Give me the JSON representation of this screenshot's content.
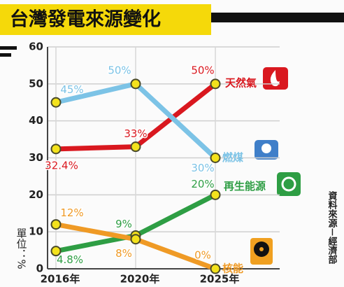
{
  "chart_data": {
    "type": "line",
    "title": "台灣發電來源變化",
    "ylabel": "單位：%",
    "source": "資料來源－經濟部",
    "categories": [
      "2016年",
      "2020年",
      "2025年"
    ],
    "ylim": [
      0,
      60
    ],
    "yticks": [
      0,
      10,
      20,
      30,
      40,
      50,
      60
    ],
    "grid": true,
    "series": [
      {
        "name": "天然氣",
        "color": "#d9181f",
        "values": [
          32.4,
          33,
          50
        ],
        "value_labels": [
          "32.4%",
          "33%",
          "50%"
        ]
      },
      {
        "name": "燃煤",
        "color": "#7cc3e6",
        "values": [
          45,
          50,
          30
        ],
        "value_labels": [
          "45%",
          "50%",
          "30%"
        ]
      },
      {
        "name": "再生能源",
        "color": "#2e9e44",
        "values": [
          4.8,
          9,
          20
        ],
        "value_labels": [
          "4.8%",
          "9%",
          "20%"
        ]
      },
      {
        "name": "核能",
        "color": "#ef9a25",
        "values": [
          12,
          8,
          0
        ],
        "value_labels": [
          "12%",
          "8%",
          "0%"
        ]
      }
    ]
  }
}
